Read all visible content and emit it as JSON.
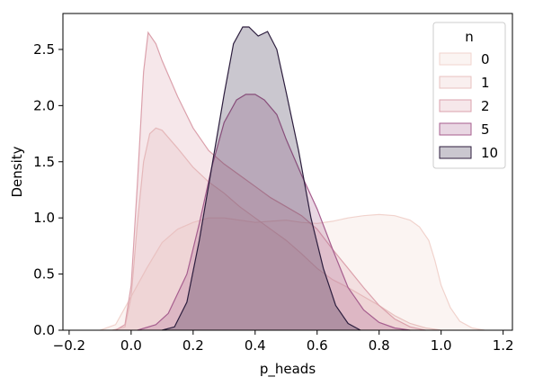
{
  "chart_data": {
    "type": "area",
    "xlabel": "p_heads",
    "ylabel": "Density",
    "xlim": [
      -0.22,
      1.23
    ],
    "ylim": [
      0,
      2.82
    ],
    "xticks": [
      -0.2,
      0.0,
      0.2,
      0.4,
      0.6,
      0.8,
      1.0,
      1.2
    ],
    "xtick_labels": [
      "−0.2",
      "0.0",
      "0.2",
      "0.4",
      "0.6",
      "0.8",
      "1.0",
      "1.2"
    ],
    "yticks": [
      0.0,
      0.5,
      1.0,
      1.5,
      2.0,
      2.5
    ],
    "ytick_labels": [
      "0.0",
      "0.5",
      "1.0",
      "1.5",
      "2.0",
      "2.5"
    ],
    "grid": false,
    "legend": {
      "title": "n",
      "placement": "top-right"
    },
    "series": [
      {
        "name": "0",
        "color": "#f1d3cd",
        "points": [
          [
            -0.1,
            0
          ],
          [
            -0.05,
            0.05
          ],
          [
            0.0,
            0.3
          ],
          [
            0.05,
            0.55
          ],
          [
            0.1,
            0.78
          ],
          [
            0.15,
            0.9
          ],
          [
            0.2,
            0.96
          ],
          [
            0.25,
            1.0
          ],
          [
            0.3,
            1.0
          ],
          [
            0.35,
            0.98
          ],
          [
            0.4,
            0.96
          ],
          [
            0.45,
            0.97
          ],
          [
            0.5,
            0.98
          ],
          [
            0.55,
            0.96
          ],
          [
            0.6,
            0.95
          ],
          [
            0.65,
            0.97
          ],
          [
            0.7,
            1.0
          ],
          [
            0.75,
            1.02
          ],
          [
            0.8,
            1.03
          ],
          [
            0.85,
            1.02
          ],
          [
            0.9,
            0.98
          ],
          [
            0.93,
            0.92
          ],
          [
            0.96,
            0.8
          ],
          [
            0.98,
            0.62
          ],
          [
            1.0,
            0.4
          ],
          [
            1.03,
            0.2
          ],
          [
            1.06,
            0.08
          ],
          [
            1.1,
            0.02
          ],
          [
            1.14,
            0
          ]
        ]
      },
      {
        "name": "1",
        "color": "#e8c1bf",
        "points": [
          [
            -0.06,
            0
          ],
          [
            -0.02,
            0.03
          ],
          [
            0.0,
            0.3
          ],
          [
            0.02,
            0.95
          ],
          [
            0.04,
            1.5
          ],
          [
            0.06,
            1.75
          ],
          [
            0.08,
            1.8
          ],
          [
            0.1,
            1.78
          ],
          [
            0.15,
            1.62
          ],
          [
            0.2,
            1.45
          ],
          [
            0.25,
            1.32
          ],
          [
            0.3,
            1.22
          ],
          [
            0.35,
            1.1
          ],
          [
            0.4,
            1.0
          ],
          [
            0.45,
            0.9
          ],
          [
            0.5,
            0.8
          ],
          [
            0.55,
            0.68
          ],
          [
            0.6,
            0.55
          ],
          [
            0.65,
            0.45
          ],
          [
            0.7,
            0.38
          ],
          [
            0.75,
            0.3
          ],
          [
            0.8,
            0.22
          ],
          [
            0.85,
            0.13
          ],
          [
            0.9,
            0.06
          ],
          [
            0.95,
            0.02
          ],
          [
            1.0,
            0
          ]
        ]
      },
      {
        "name": "2",
        "color": "#dba1ac",
        "points": [
          [
            -0.05,
            0
          ],
          [
            -0.02,
            0.05
          ],
          [
            0.0,
            0.4
          ],
          [
            0.02,
            1.3
          ],
          [
            0.04,
            2.3
          ],
          [
            0.055,
            2.65
          ],
          [
            0.08,
            2.55
          ],
          [
            0.1,
            2.4
          ],
          [
            0.15,
            2.08
          ],
          [
            0.2,
            1.8
          ],
          [
            0.25,
            1.6
          ],
          [
            0.3,
            1.48
          ],
          [
            0.35,
            1.38
          ],
          [
            0.4,
            1.28
          ],
          [
            0.45,
            1.18
          ],
          [
            0.5,
            1.1
          ],
          [
            0.55,
            1.02
          ],
          [
            0.6,
            0.9
          ],
          [
            0.65,
            0.72
          ],
          [
            0.7,
            0.55
          ],
          [
            0.75,
            0.38
          ],
          [
            0.8,
            0.22
          ],
          [
            0.85,
            0.1
          ],
          [
            0.9,
            0.03
          ],
          [
            0.95,
            0
          ]
        ]
      },
      {
        "name": "5",
        "color": "#a65e8e",
        "points": [
          [
            0.02,
            0
          ],
          [
            0.08,
            0.05
          ],
          [
            0.12,
            0.15
          ],
          [
            0.18,
            0.5
          ],
          [
            0.22,
            0.95
          ],
          [
            0.26,
            1.45
          ],
          [
            0.3,
            1.85
          ],
          [
            0.34,
            2.05
          ],
          [
            0.37,
            2.1
          ],
          [
            0.4,
            2.1
          ],
          [
            0.43,
            2.05
          ],
          [
            0.47,
            1.92
          ],
          [
            0.5,
            1.7
          ],
          [
            0.55,
            1.38
          ],
          [
            0.6,
            1.08
          ],
          [
            0.65,
            0.72
          ],
          [
            0.7,
            0.38
          ],
          [
            0.75,
            0.18
          ],
          [
            0.8,
            0.07
          ],
          [
            0.85,
            0.02
          ],
          [
            0.9,
            0
          ]
        ]
      },
      {
        "name": "10",
        "color": "#2d1e3e",
        "points": [
          [
            0.1,
            0
          ],
          [
            0.14,
            0.03
          ],
          [
            0.18,
            0.25
          ],
          [
            0.22,
            0.8
          ],
          [
            0.26,
            1.45
          ],
          [
            0.3,
            2.1
          ],
          [
            0.33,
            2.55
          ],
          [
            0.36,
            2.7
          ],
          [
            0.38,
            2.7
          ],
          [
            0.41,
            2.62
          ],
          [
            0.44,
            2.66
          ],
          [
            0.47,
            2.5
          ],
          [
            0.5,
            2.12
          ],
          [
            0.54,
            1.6
          ],
          [
            0.58,
            1.0
          ],
          [
            0.62,
            0.55
          ],
          [
            0.66,
            0.22
          ],
          [
            0.7,
            0.06
          ],
          [
            0.74,
            0
          ]
        ]
      }
    ]
  }
}
